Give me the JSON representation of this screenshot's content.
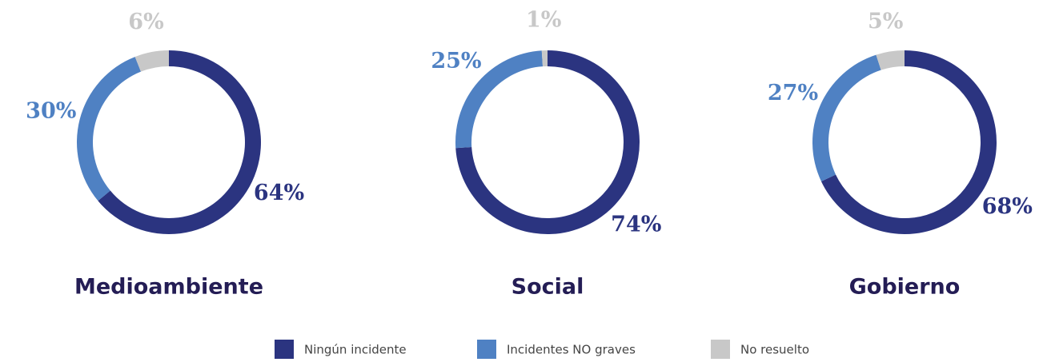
{
  "chart_data": [
    {
      "type": "pie",
      "title": "Medioambiente",
      "values": [
        64,
        30,
        6
      ],
      "value_labels": [
        "64%",
        "30%",
        "6%"
      ]
    },
    {
      "type": "pie",
      "title": "Social",
      "values": [
        74,
        25,
        1
      ],
      "value_labels": [
        "74%",
        "25%",
        "1%"
      ]
    },
    {
      "type": "pie",
      "title": "Gobierno",
      "values": [
        68,
        27,
        5
      ],
      "value_labels": [
        "68%",
        "27%",
        "5%"
      ]
    }
  ],
  "legend": {
    "labels": [
      "Ningún incidente",
      "Incidentes NO graves",
      "No resuelto"
    ],
    "colors": [
      "#2b3480",
      "#4f81c3",
      "#c8c8c8"
    ]
  }
}
